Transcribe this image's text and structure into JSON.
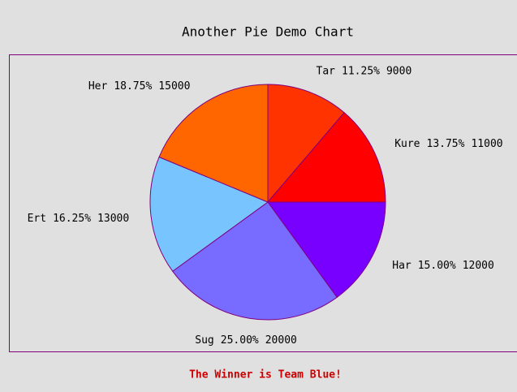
{
  "chart_data": {
    "type": "pie",
    "title": "Another Pie Demo Chart",
    "footer": "The Winner is Team Blue!",
    "categories": [
      "Tar",
      "Kure",
      "Har",
      "Sug",
      "Ert",
      "Her"
    ],
    "values": [
      9000,
      11000,
      12000,
      20000,
      13000,
      15000
    ],
    "percent_labels": [
      "11.25%",
      "13.75%",
      "15.00%",
      "25.00%",
      "16.25%",
      "18.75%"
    ],
    "colors": [
      "#ff3300",
      "#ff0000",
      "#7700ff",
      "#776cff",
      "#77c4ff",
      "#ff6600"
    ]
  }
}
